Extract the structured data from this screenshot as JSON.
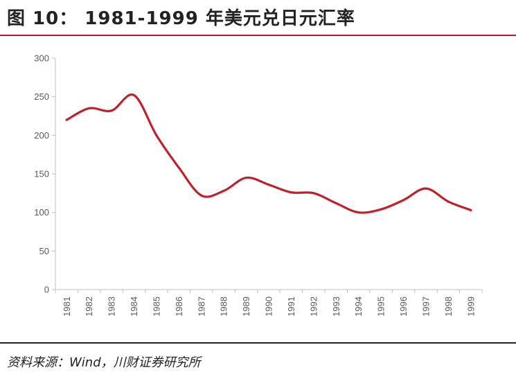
{
  "header": {
    "title": "图 10：  1981-1999 年美元兑日元汇率"
  },
  "footer": {
    "source": "资料来源：Wind，川财证券研究所"
  },
  "colors": {
    "accent": "#b81c22",
    "line": "#c0202a",
    "axis": "#bfbfbf",
    "tick_text": "#595959"
  },
  "chart_data": {
    "type": "line",
    "title": "",
    "xlabel": "",
    "ylabel": "",
    "categories": [
      "1981",
      "1982",
      "1983",
      "1984",
      "1985",
      "1986",
      "1987",
      "1988",
      "1989",
      "1990",
      "1991",
      "1992",
      "1993",
      "1994",
      "1995",
      "1996",
      "1997",
      "1998",
      "1999"
    ],
    "series": [
      {
        "values": [
          220,
          235,
          232,
          252,
          200,
          158,
          122,
          128,
          145,
          136,
          126,
          125,
          112,
          100,
          104,
          116,
          131,
          114,
          103
        ]
      }
    ],
    "ylim": [
      0,
      300
    ],
    "yticks": [
      0,
      50,
      100,
      150,
      200,
      250,
      300
    ],
    "grid": false,
    "legend": "none"
  }
}
